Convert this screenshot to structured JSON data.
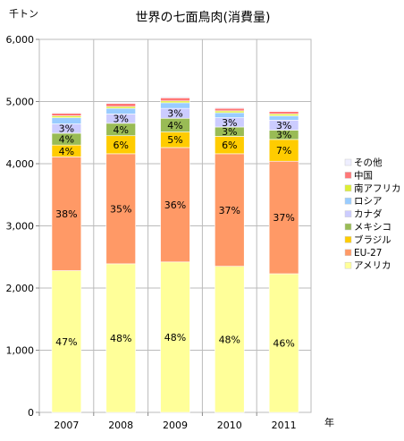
{
  "chart_data": {
    "type": "bar",
    "stacked": true,
    "title": "世界の七面鳥肉(消費量)",
    "ylabel": "千トン",
    "xlabel": "年",
    "categories": [
      "2007",
      "2008",
      "2009",
      "2010",
      "2011"
    ],
    "ylim": [
      0,
      6000
    ],
    "yticks": [
      "0",
      "1,000",
      "2,000",
      "3,000",
      "4,000",
      "5,000",
      "6,000"
    ],
    "grid": true,
    "legend_position": "right",
    "series": [
      {
        "name": "アメリカ",
        "color": "#ffff99",
        "values": [
          2280,
          2390,
          2420,
          2350,
          2230
        ],
        "labels": [
          "47%",
          "48%",
          "48%",
          "48%",
          "46%"
        ]
      },
      {
        "name": "EU-27",
        "color": "#ff9966",
        "values": [
          1830,
          1770,
          1840,
          1810,
          1810
        ],
        "labels": [
          "38%",
          "35%",
          "36%",
          "37%",
          "37%"
        ]
      },
      {
        "name": "ブラジル",
        "color": "#ffcc00",
        "values": [
          190,
          290,
          250,
          280,
          350
        ],
        "labels": [
          "4%",
          "6%",
          "5%",
          "6%",
          "7%"
        ]
      },
      {
        "name": "メキシコ",
        "color": "#99bb55",
        "values": [
          190,
          200,
          220,
          150,
          150
        ],
        "labels": [
          "4%",
          "4%",
          "4%",
          "3%",
          "3%"
        ]
      },
      {
        "name": "カナダ",
        "color": "#ccccff",
        "values": [
          150,
          150,
          160,
          150,
          160
        ],
        "labels": [
          "3%",
          "3%",
          "3%",
          "3%",
          "3%"
        ]
      },
      {
        "name": "ロシア",
        "color": "#99ccff",
        "values": [
          100,
          90,
          90,
          80,
          70
        ],
        "labels": [
          "",
          "",
          "",
          "",
          ""
        ]
      },
      {
        "name": "南アフリカ",
        "color": "#ddee33",
        "values": [
          30,
          30,
          30,
          30,
          30
        ],
        "labels": [
          "",
          "",
          "",
          "",
          ""
        ]
      },
      {
        "name": "中国",
        "color": "#ff7777",
        "values": [
          40,
          50,
          50,
          40,
          40
        ],
        "labels": [
          "",
          "",
          "",
          "",
          ""
        ]
      },
      {
        "name": "その他",
        "color": "#eeeeff",
        "values": [
          20,
          20,
          20,
          20,
          20
        ],
        "labels": [
          "",
          "",
          "",
          "",
          ""
        ]
      }
    ]
  }
}
